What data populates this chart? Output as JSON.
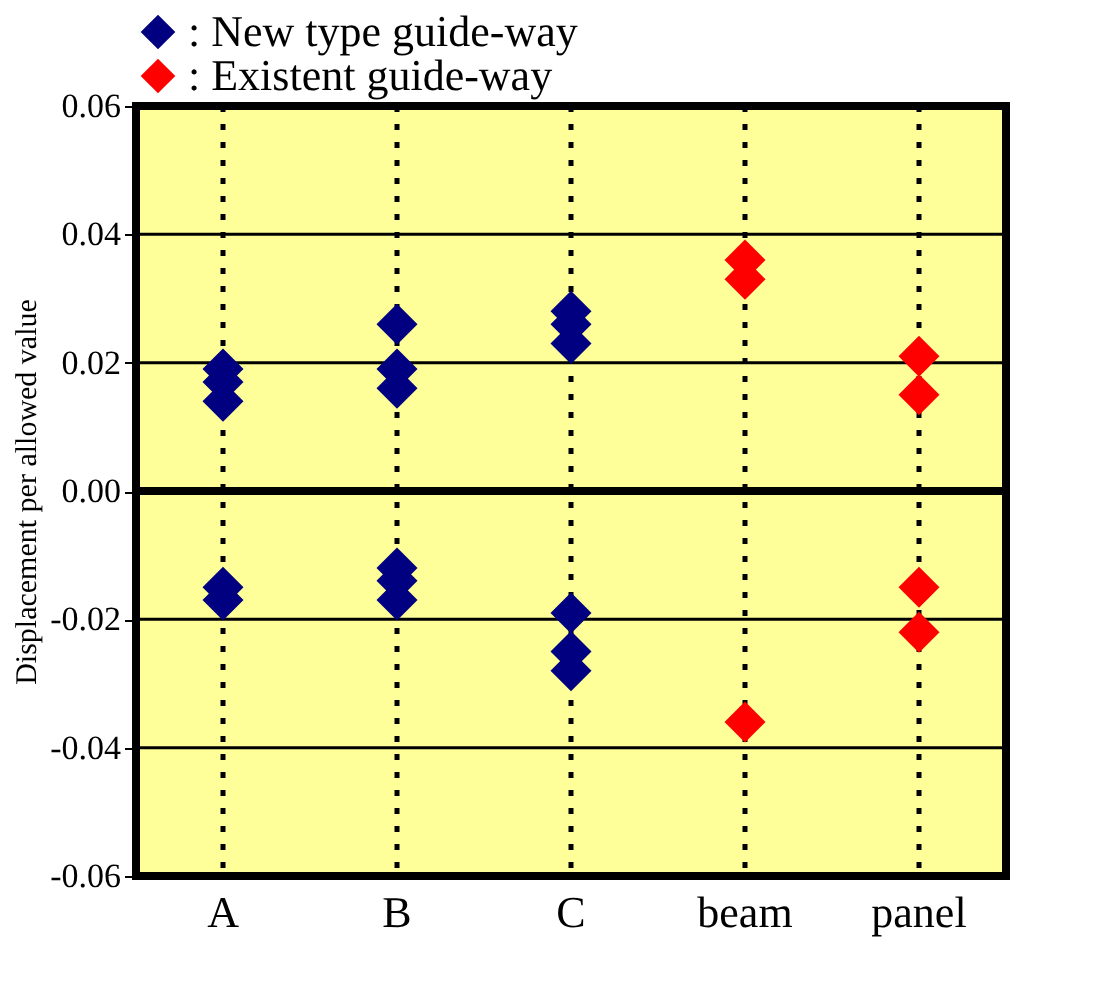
{
  "chart_data": {
    "type": "scatter",
    "ylabel": "Displacement per allowed value",
    "categories": [
      "A",
      "B",
      "C",
      "beam",
      "panel"
    ],
    "series": [
      {
        "name": ": New type guide-way",
        "color": "#000080",
        "x": [
          "A",
          "A",
          "A",
          "A",
          "A",
          "B",
          "B",
          "B",
          "B",
          "B",
          "B",
          "C",
          "C",
          "C",
          "C",
          "C",
          "C"
        ],
        "values": [
          0.019,
          0.017,
          0.014,
          -0.015,
          -0.017,
          0.026,
          0.019,
          0.016,
          -0.012,
          -0.014,
          -0.017,
          0.028,
          0.026,
          0.023,
          -0.019,
          -0.025,
          -0.028
        ]
      },
      {
        "name": ": Existent guide-way",
        "color": "#ff0000",
        "x": [
          "beam",
          "beam",
          "beam",
          "panel",
          "panel",
          "panel",
          "panel"
        ],
        "values": [
          0.036,
          0.033,
          -0.036,
          0.021,
          0.015,
          -0.015,
          -0.022
        ]
      }
    ],
    "ylim": [
      -0.06,
      0.06
    ],
    "yticks": [
      -0.06,
      -0.04,
      -0.02,
      {
        "value": 0,
        "label": "0.00"
      },
      0.02,
      0.04,
      0.06
    ],
    "ref_lines": [
      {
        "axis": "y",
        "value": 0,
        "color": "#000000"
      }
    ],
    "grid": true,
    "legend": "top",
    "marker": "diamond"
  }
}
